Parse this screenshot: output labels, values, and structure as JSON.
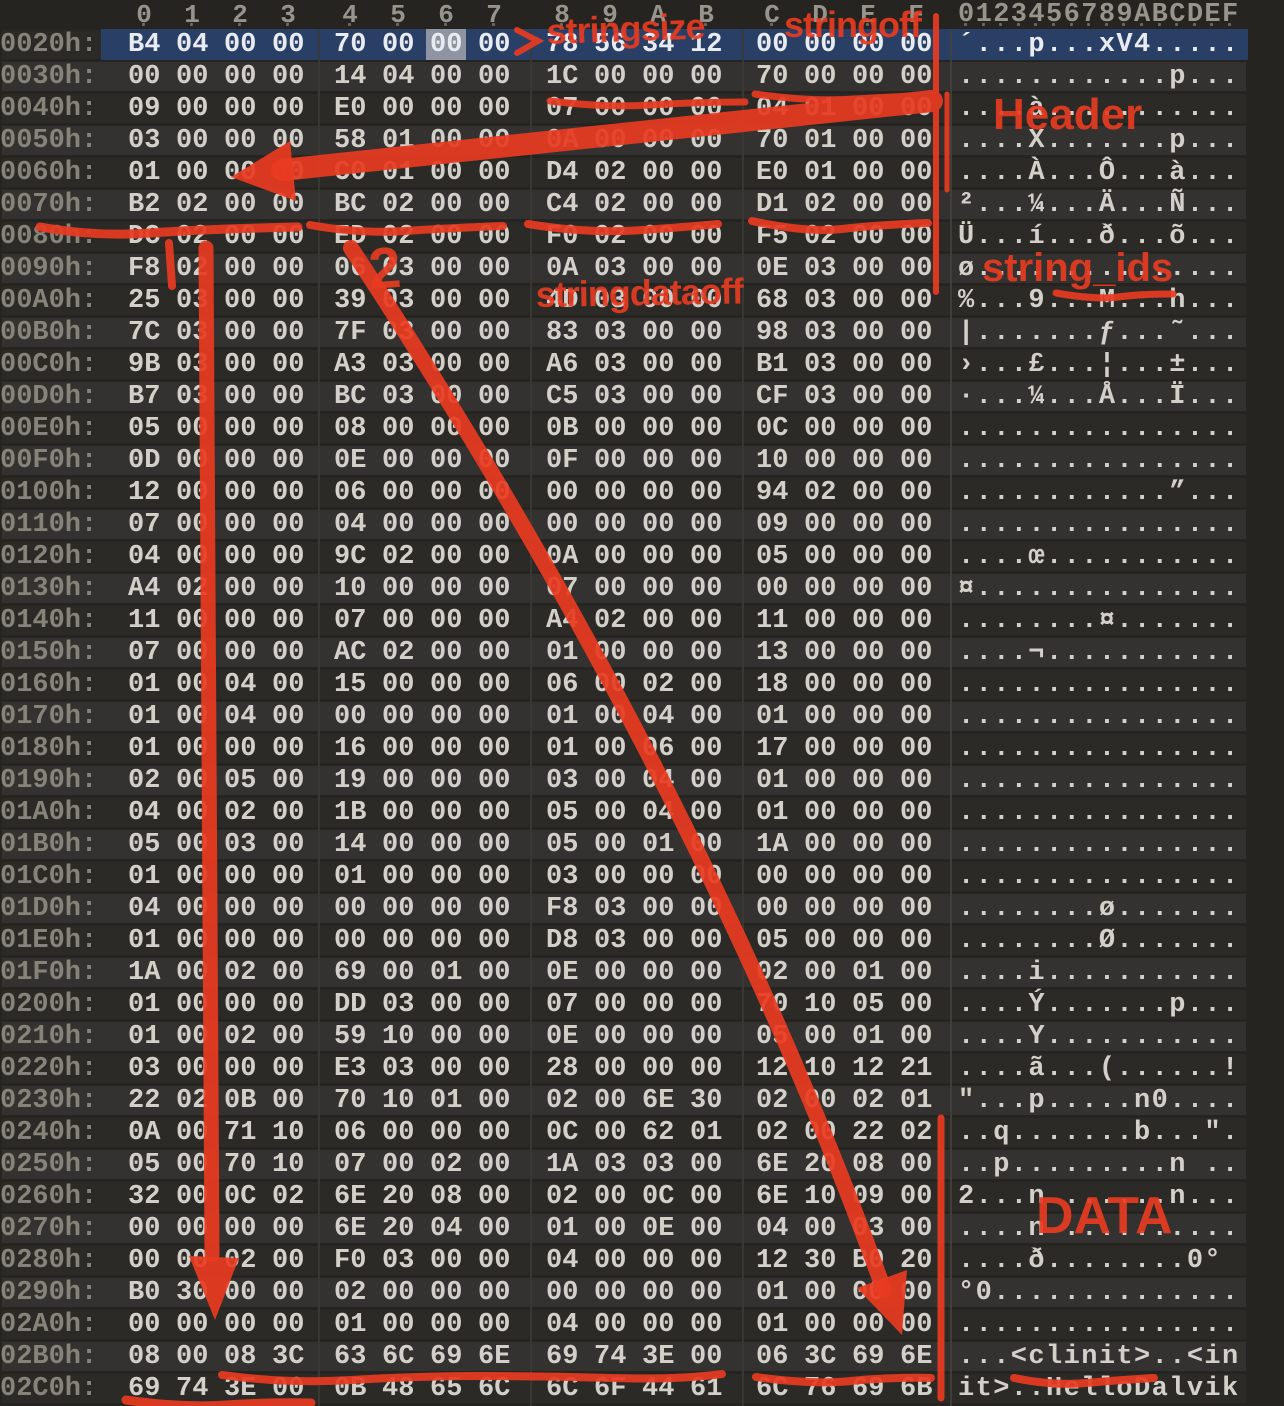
{
  "view": {
    "col_headers": [
      "0",
      "1",
      "2",
      "3",
      "4",
      "5",
      "6",
      "7",
      "8",
      "9",
      "A",
      "B",
      "C",
      "D",
      "E",
      "F"
    ],
    "ascii_ruler": "0123456789ABCDEF",
    "cursor": {
      "row_index": 0,
      "byte_index": 6
    },
    "selected_row_index": 0,
    "rows": [
      {
        "o": "0020h:",
        "b": "B4 04 00 00 70 00 00 00 78 56 34 12 00 00 00 00",
        "a": "´...p...xV4....."
      },
      {
        "o": "0030h:",
        "b": "00 00 00 00 14 04 00 00 1C 00 00 00 70 00 00 00",
        "a": "............p..."
      },
      {
        "o": "0040h:",
        "b": "09 00 00 00 E0 00 00 00 07 00 00 00 04 01 00 00",
        "a": "....à..........."
      },
      {
        "o": "0050h:",
        "b": "03 00 00 00 58 01 00 00 0A 00 00 00 70 01 00 00",
        "a": "....X.......p..."
      },
      {
        "o": "0060h:",
        "b": "01 00 00 00 C0 01 00 00 D4 02 00 00 E0 01 00 00",
        "a": "....À...Ô...à..."
      },
      {
        "o": "0070h:",
        "b": "B2 02 00 00 BC 02 00 00 C4 02 00 00 D1 02 00 00",
        "a": "²...¼...Ä...Ñ..."
      },
      {
        "o": "0080h:",
        "b": "DC 02 00 00 ED 02 00 00 F0 02 00 00 F5 02 00 00",
        "a": "Ü...í...ð...õ..."
      },
      {
        "o": "0090h:",
        "b": "F8 02 00 00 06 03 00 00 0A 03 00 00 0E 03 00 00",
        "a": "ø..............."
      },
      {
        "o": "00A0h:",
        "b": "25 03 00 00 39 03 00 00 4D 03 00 00 68 03 00 00",
        "a": "%...9...M...h..."
      },
      {
        "o": "00B0h:",
        "b": "7C 03 00 00 7F 03 00 00 83 03 00 00 98 03 00 00",
        "a": "|.......ƒ...˜..."
      },
      {
        "o": "00C0h:",
        "b": "9B 03 00 00 A3 03 00 00 A6 03 00 00 B1 03 00 00",
        "a": "›...£...¦...±..."
      },
      {
        "o": "00D0h:",
        "b": "B7 03 00 00 BC 03 00 00 C5 03 00 00 CF 03 00 00",
        "a": "·...¼...Å...Ï..."
      },
      {
        "o": "00E0h:",
        "b": "05 00 00 00 08 00 00 00 0B 00 00 00 0C 00 00 00",
        "a": "................"
      },
      {
        "o": "00F0h:",
        "b": "0D 00 00 00 0E 00 00 00 0F 00 00 00 10 00 00 00",
        "a": "................"
      },
      {
        "o": "0100h:",
        "b": "12 00 00 00 06 00 00 00 00 00 00 00 94 02 00 00",
        "a": "............”..."
      },
      {
        "o": "0110h:",
        "b": "07 00 00 00 04 00 00 00 00 00 00 00 09 00 00 00",
        "a": "................"
      },
      {
        "o": "0120h:",
        "b": "04 00 00 00 9C 02 00 00 0A 00 00 00 05 00 00 00",
        "a": "....œ..........."
      },
      {
        "o": "0130h:",
        "b": "A4 02 00 00 10 00 00 00 07 00 00 00 00 00 00 00",
        "a": "¤..............."
      },
      {
        "o": "0140h:",
        "b": "11 00 00 00 07 00 00 00 A4 02 00 00 11 00 00 00",
        "a": "........¤......."
      },
      {
        "o": "0150h:",
        "b": "07 00 00 00 AC 02 00 00 01 00 00 00 13 00 00 00",
        "a": "....¬..........."
      },
      {
        "o": "0160h:",
        "b": "01 00 04 00 15 00 00 00 06 00 02 00 18 00 00 00",
        "a": "................"
      },
      {
        "o": "0170h:",
        "b": "01 00 04 00 00 00 00 00 01 00 04 00 01 00 00 00",
        "a": "................"
      },
      {
        "o": "0180h:",
        "b": "01 00 00 00 16 00 00 00 01 00 06 00 17 00 00 00",
        "a": "................"
      },
      {
        "o": "0190h:",
        "b": "02 00 05 00 19 00 00 00 03 00 04 00 01 00 00 00",
        "a": "................"
      },
      {
        "o": "01A0h:",
        "b": "04 00 02 00 1B 00 00 00 05 00 04 00 01 00 00 00",
        "a": "................"
      },
      {
        "o": "01B0h:",
        "b": "05 00 03 00 14 00 00 00 05 00 01 00 1A 00 00 00",
        "a": "................"
      },
      {
        "o": "01C0h:",
        "b": "01 00 00 00 01 00 00 00 03 00 00 00 00 00 00 00",
        "a": "................"
      },
      {
        "o": "01D0h:",
        "b": "04 00 00 00 00 00 00 00 F8 03 00 00 00 00 00 00",
        "a": "........ø......."
      },
      {
        "o": "01E0h:",
        "b": "01 00 00 00 00 00 00 00 D8 03 00 00 05 00 00 00",
        "a": "........Ø......."
      },
      {
        "o": "01F0h:",
        "b": "1A 00 02 00 69 00 01 00 0E 00 00 00 02 00 01 00",
        "a": "....i..........."
      },
      {
        "o": "0200h:",
        "b": "01 00 00 00 DD 03 00 00 07 00 00 00 70 10 05 00",
        "a": "....Ý.......p..."
      },
      {
        "o": "0210h:",
        "b": "01 00 02 00 59 10 00 00 0E 00 00 00 05 00 01 00",
        "a": "....Y..........."
      },
      {
        "o": "0220h:",
        "b": "03 00 00 00 E3 03 00 00 28 00 00 00 12 10 12 21",
        "a": "....ã...(......!"
      },
      {
        "o": "0230h:",
        "b": "22 02 0B 00 70 10 01 00 02 00 6E 30 02 00 02 01",
        "a": "\"...p.....n0...."
      },
      {
        "o": "0240h:",
        "b": "0A 00 71 10 06 00 00 00 0C 00 62 01 02 00 22 02",
        "a": "..q.......b...\"."
      },
      {
        "o": "0250h:",
        "b": "05 00 70 10 07 00 02 00 1A 03 03 00 6E 20 08 00",
        "a": "..p.........n .."
      },
      {
        "o": "0260h:",
        "b": "32 00 0C 02 6E 20 08 00 02 00 0C 00 6E 10 09 00",
        "a": "2...n ......n..."
      },
      {
        "o": "0270h:",
        "b": "00 00 00 00 6E 20 04 00 01 00 0E 00 04 00 03 00",
        "a": "....n .........."
      },
      {
        "o": "0280h:",
        "b": "00 00 02 00 F0 03 00 00 04 00 00 00 12 30 B0 20",
        "a": "....ð........0° "
      },
      {
        "o": "0290h:",
        "b": "B0 30 00 00 02 00 00 00 00 00 00 00 01 00 00 00",
        "a": "°0.............."
      },
      {
        "o": "02A0h:",
        "b": "00 00 00 00 01 00 00 00 04 00 00 00 01 00 00 00",
        "a": "................"
      },
      {
        "o": "02B0h:",
        "b": "08 00 08 3C 63 6C 69 6E 69 74 3E 00 06 3C 69 6E",
        "a": "...<clinit>..<in"
      },
      {
        "o": "02C0h:",
        "b": "69 74 3E 00 0B 48 65 6C 6C 6F 44 61 6C 76 69 6B",
        "a": "it>..HelloDalvik"
      }
    ]
  },
  "annotations": {
    "stringsize": "stringsize",
    "stringoff": "stringoff",
    "chevron": ">",
    "header": "Header",
    "string_ids": "string_ids",
    "two": "2",
    "stringdataoff": "stringdataoff",
    "data": "DATA"
  },
  "colors": {
    "background": "#262421",
    "band_light": "#343230",
    "band_dark": "#2c2a27",
    "selection_blue": "#2a3f66",
    "cursor_grey": "#8e94a2",
    "hex_text": "#d3d0ca",
    "offset_text": "#868379",
    "annotation_red": "#e93b21"
  }
}
